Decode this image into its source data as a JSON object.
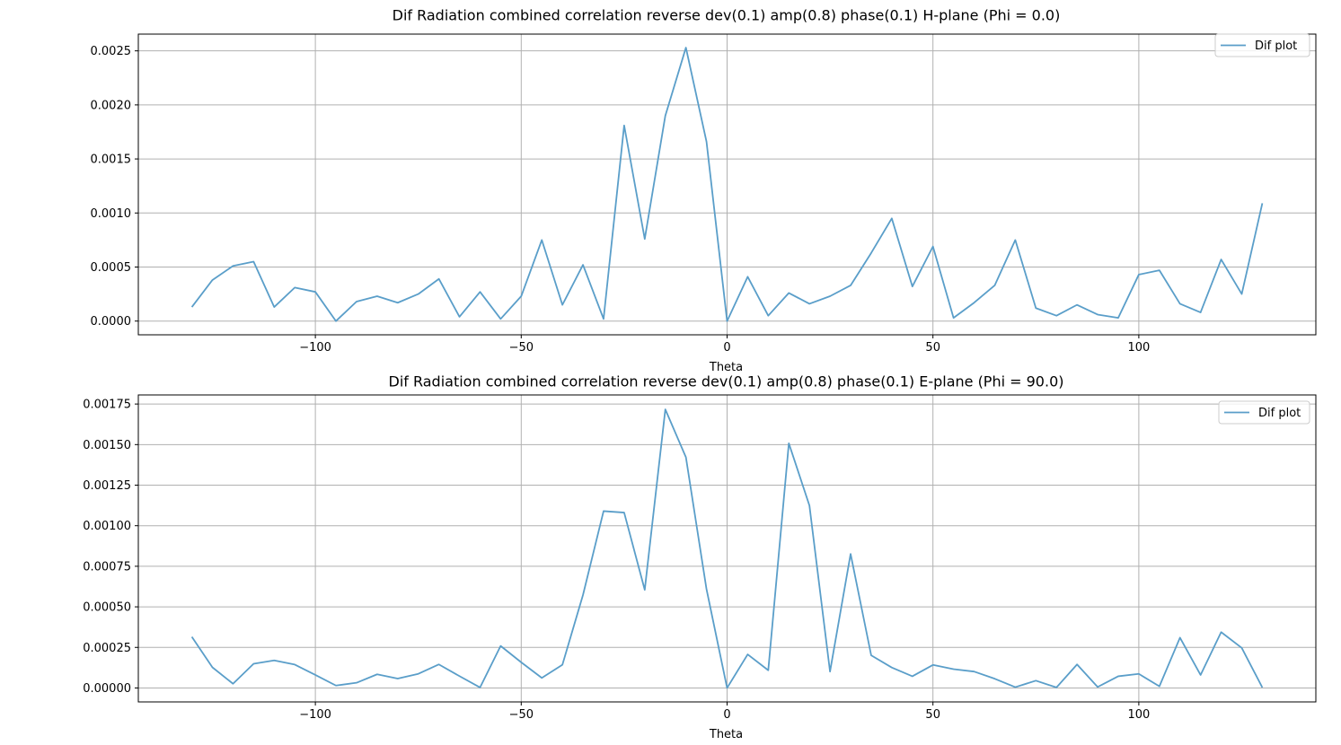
{
  "figure": {
    "background": "#ffffff",
    "line_color": "#5a9ec9",
    "grid_color": "#b0b0b0"
  },
  "chart_data": [
    {
      "type": "line",
      "title": "Dif Radiation combined correlation reverse dev(0.1) amp(0.8) phase(0.1) H-plane (Phi = 0.0)",
      "xlabel": "Theta",
      "ylabel": "",
      "xlim": [
        -143,
        143
      ],
      "ylim": [
        -0.000127,
        0.002655
      ],
      "x_ticks": [
        -100,
        -50,
        0,
        50,
        100
      ],
      "x_tick_labels": [
        "−100",
        "−50",
        "0",
        "50",
        "100"
      ],
      "y_ticks": [
        0,
        0.0005,
        0.001,
        0.0015,
        0.002,
        0.0025
      ],
      "y_tick_labels": [
        "0.0000",
        "0.0005",
        "0.0010",
        "0.0015",
        "0.0020",
        "0.0025"
      ],
      "grid": true,
      "legend": "top-right",
      "series": [
        {
          "name": "Dif plot",
          "x": [
            -130,
            -125,
            -120,
            -115,
            -110,
            -105,
            -100,
            -95,
            -90,
            -85,
            -80,
            -75,
            -70,
            -65,
            -60,
            -55,
            -50,
            -45,
            -40,
            -35,
            -30,
            -25,
            -20,
            -15,
            -10,
            -5,
            0,
            5,
            10,
            15,
            20,
            25,
            30,
            35,
            40,
            45,
            50,
            55,
            60,
            65,
            70,
            75,
            80,
            85,
            90,
            95,
            100,
            105,
            110,
            115,
            120,
            125,
            130
          ],
          "values": [
            0.00013,
            0.00038,
            0.00051,
            0.00055,
            0.00013,
            0.00031,
            0.00027,
            0.0,
            0.00018,
            0.00023,
            0.00017,
            0.00025,
            0.00039,
            4e-05,
            0.00027,
            2e-05,
            0.00023,
            0.00075,
            0.00015,
            0.00052,
            2e-05,
            0.00181,
            0.00076,
            0.0019,
            0.00253,
            0.00166,
            0.0,
            0.00041,
            5e-05,
            0.00026,
            0.00016,
            0.00023,
            0.00033,
            0.00063,
            0.00095,
            0.00032,
            0.00069,
            3e-05,
            0.00017,
            0.00033,
            0.00075,
            0.00012,
            5e-05,
            0.00015,
            6e-05,
            3e-05,
            0.00043,
            0.00047,
            0.00016,
            8e-05,
            0.00057,
            0.00025,
            0.00109
          ]
        }
      ]
    },
    {
      "type": "line",
      "title": "Dif Radiation combined correlation reverse dev(0.1) amp(0.8) phase(0.1) E-plane (Phi = 90.0)",
      "xlabel": "Theta",
      "ylabel": "",
      "xlim": [
        -143,
        143
      ],
      "ylim": [
        -8.6e-05,
        0.001806
      ],
      "x_ticks": [
        -100,
        -50,
        0,
        50,
        100
      ],
      "x_tick_labels": [
        "−100",
        "−50",
        "0",
        "50",
        "100"
      ],
      "y_ticks": [
        0,
        0.00025,
        0.0005,
        0.00075,
        0.001,
        0.00125,
        0.0015,
        0.00175
      ],
      "y_tick_labels": [
        "0.00000",
        "0.00025",
        "0.00050",
        "0.00075",
        "0.00100",
        "0.00125",
        "0.00150",
        "0.00175"
      ],
      "grid": true,
      "legend": "top-right",
      "series": [
        {
          "name": "Dif plot",
          "x": [
            -130,
            -125,
            -120,
            -115,
            -110,
            -105,
            -100,
            -95,
            -90,
            -85,
            -80,
            -75,
            -70,
            -65,
            -60,
            -55,
            -50,
            -45,
            -40,
            -35,
            -30,
            -25,
            -20,
            -15,
            -10,
            -5,
            0,
            5,
            10,
            15,
            20,
            25,
            30,
            35,
            40,
            45,
            50,
            55,
            60,
            65,
            70,
            75,
            80,
            85,
            90,
            95,
            100,
            105,
            110,
            115,
            120,
            125,
            130
          ],
          "values": [
            0.000315,
            0.000127,
            2.6e-05,
            0.000149,
            0.00017,
            0.000144,
            8e-05,
            1.5e-05,
            3.2e-05,
            8.4e-05,
            5.8e-05,
            8.7e-05,
            0.000145,
            7.3e-05,
            3e-06,
            0.000259,
            0.000158,
            6.2e-05,
            0.000143,
            0.000573,
            0.00109,
            0.001081,
            0.000605,
            0.001717,
            0.001422,
            0.000609,
            0.0,
            0.000207,
            0.000109,
            0.001508,
            0.001124,
            0.000101,
            0.000826,
            0.000201,
            0.000126,
            7.2e-05,
            0.000142,
            0.000116,
            0.000101,
            5.7e-05,
            5e-06,
            4.5e-05,
            3e-06,
            0.000145,
            6e-06,
            7.2e-05,
            8.7e-05,
            1e-05,
            0.00031,
            8e-05,
            0.000344,
            0.000247,
            3e-06
          ]
        }
      ]
    }
  ]
}
